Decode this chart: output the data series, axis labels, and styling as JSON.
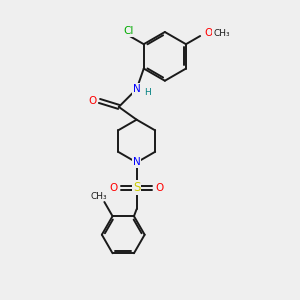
{
  "bg_color": "#efefef",
  "bond_color": "#1a1a1a",
  "N_color": "#0000ff",
  "O_color": "#ff0000",
  "S_color": "#cccc00",
  "Cl_color": "#00aa00",
  "H_color": "#008080",
  "figsize": [
    3.0,
    3.0
  ],
  "dpi": 100,
  "xlim": [
    0,
    10
  ],
  "ylim": [
    0,
    10
  ]
}
